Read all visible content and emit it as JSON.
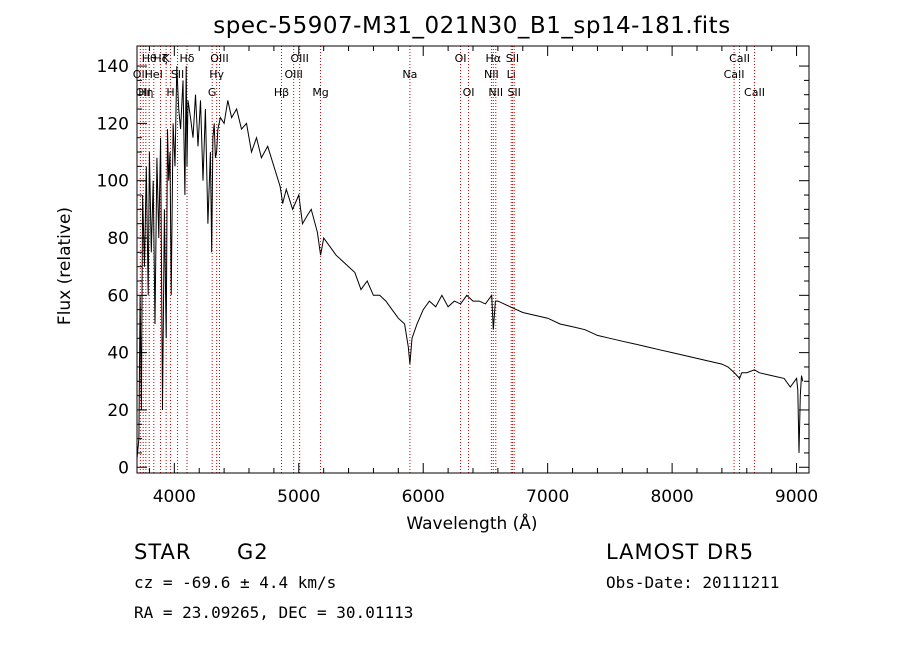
{
  "chart_data": {
    "type": "line",
    "title": "spec-55907-M31_021N30_B1_sp14-181.fits",
    "xlabel": "Wavelength (Å)",
    "ylabel": "Flux (relative)",
    "xlim": [
      3700,
      9100
    ],
    "ylim": [
      -2,
      147
    ],
    "xticks": [
      4000,
      5000,
      6000,
      7000,
      8000,
      9000
    ],
    "yticks": [
      0,
      20,
      40,
      60,
      80,
      100,
      120,
      140
    ],
    "grid": false,
    "line_color": "#000000",
    "marker_color": "#cc0000",
    "series": [
      {
        "x": [
          3700,
          3715,
          3725,
          3735,
          3745,
          3760,
          3775,
          3790,
          3800,
          3815,
          3830,
          3845,
          3860,
          3875,
          3890,
          3905,
          3920,
          3935,
          3945,
          3955,
          3965,
          3975,
          3990,
          4005,
          4020,
          4035,
          4050,
          4070,
          4085,
          4095,
          4102,
          4110,
          4130,
          4150,
          4170,
          4190,
          4210,
          4230,
          4250,
          4270,
          4290,
          4300,
          4310,
          4320,
          4330,
          4340,
          4350,
          4370,
          4400,
          4430,
          4460,
          4500,
          4540,
          4580,
          4620,
          4660,
          4700,
          4750,
          4800,
          4850,
          4861,
          4870,
          4900,
          4950,
          5000,
          5030,
          5070,
          5100,
          5150,
          5175,
          5200,
          5250,
          5300,
          5350,
          5400,
          5450,
          5500,
          5550,
          5600,
          5650,
          5700,
          5750,
          5800,
          5850,
          5880,
          5893,
          5910,
          5950,
          6000,
          6050,
          6100,
          6150,
          6200,
          6250,
          6300,
          6350,
          6400,
          6450,
          6500,
          6550,
          6563,
          6580,
          6600,
          6650,
          6700,
          6750,
          6800,
          6900,
          7000,
          7100,
          7200,
          7300,
          7400,
          7500,
          7600,
          7700,
          7800,
          7900,
          8000,
          8100,
          8200,
          8300,
          8400,
          8450,
          8500,
          8542,
          8560,
          8600,
          8662,
          8700,
          8800,
          8900,
          8950,
          9000,
          9010,
          9020,
          9030,
          9040,
          9050
        ],
        "y": [
          3,
          10,
          60,
          20,
          95,
          70,
          105,
          60,
          110,
          75,
          100,
          50,
          108,
          80,
          115,
          20,
          90,
          45,
          118,
          100,
          110,
          60,
          120,
          105,
          140,
          125,
          118,
          135,
          95,
          140,
          105,
          128,
          122,
          115,
          130,
          112,
          128,
          100,
          125,
          85,
          110,
          75,
          115,
          120,
          108,
          110,
          118,
          122,
          120,
          128,
          122,
          125,
          118,
          120,
          110,
          115,
          108,
          112,
          105,
          98,
          95,
          92,
          97,
          90,
          95,
          85,
          88,
          90,
          82,
          74,
          80,
          77,
          74,
          72,
          70,
          68,
          62,
          65,
          60,
          60,
          58,
          55,
          52,
          50,
          42,
          36,
          45,
          50,
          55,
          58,
          56,
          60,
          56,
          58,
          57,
          60,
          58,
          58,
          57,
          60,
          48,
          58,
          58,
          57,
          56,
          55,
          54,
          53,
          52,
          50,
          49,
          48,
          46,
          45,
          44,
          43,
          42,
          41,
          40,
          39,
          38,
          37,
          36,
          35,
          33,
          31,
          33,
          33,
          34,
          33,
          32,
          31,
          28,
          31,
          27,
          5,
          25,
          32,
          30
        ]
      }
    ],
    "line_markers": [
      {
        "x": 3727,
        "label": "OII",
        "row": 2
      },
      {
        "x": 3750,
        "label": "OII",
        "row": 3
      },
      {
        "x": 3771,
        "label": "Hη",
        "row": 3
      },
      {
        "x": 3798,
        "label": "Hθ",
        "row": 1
      },
      {
        "x": 3835,
        "label": "HeI",
        "row": 2
      },
      {
        "x": 3889,
        "label": "Hζ",
        "row": 1
      },
      {
        "x": 3934,
        "label": "K",
        "row": 1
      },
      {
        "x": 3969,
        "label": "H",
        "row": 3
      },
      {
        "x": 4026,
        "label": "SII",
        "row": 2
      },
      {
        "x": 4102,
        "label": "Hδ",
        "row": 1
      },
      {
        "x": 4304,
        "label": "G",
        "row": 3
      },
      {
        "x": 4340,
        "label": "Hγ",
        "row": 2
      },
      {
        "x": 4363,
        "label": "OIII",
        "row": 1
      },
      {
        "x": 4861,
        "label": "Hβ",
        "row": 3
      },
      {
        "x": 4959,
        "label": "OIII",
        "row": 2
      },
      {
        "x": 5007,
        "label": "OIII",
        "row": 1
      },
      {
        "x": 5175,
        "label": "Mg",
        "row": 3
      },
      {
        "x": 5893,
        "label": "Na",
        "row": 2
      },
      {
        "x": 6300,
        "label": "OI",
        "row": 1
      },
      {
        "x": 6364,
        "label": "OI",
        "row": 3
      },
      {
        "x": 6548,
        "label": "NII",
        "row": 2
      },
      {
        "x": 6563,
        "label": "Hα",
        "row": 1
      },
      {
        "x": 6583,
        "label": "NII",
        "row": 3
      },
      {
        "x": 6707,
        "label": "Li",
        "row": 2
      },
      {
        "x": 6717,
        "label": "SII",
        "row": 1
      },
      {
        "x": 6731,
        "label": "SII",
        "row": 3
      },
      {
        "x": 8498,
        "label": "CaII",
        "row": 2
      },
      {
        "x": 8542,
        "label": "CaII",
        "row": 1
      },
      {
        "x": 8662,
        "label": "CaII",
        "row": 3
      }
    ]
  },
  "info": {
    "class_label": "STAR",
    "subclass_label": "G2",
    "survey_label": "LAMOST DR5",
    "cz_text": "cz = -69.6 ± 4.4 km/s",
    "obs_date_text": "Obs-Date: 20111211",
    "radec_text": "RA =  23.09265, DEC =  30.01113"
  }
}
